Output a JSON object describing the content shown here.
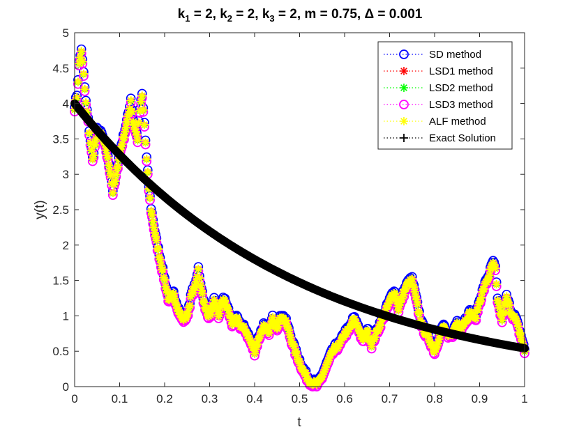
{
  "chart_data": {
    "type": "line",
    "title": {
      "k1_sym": "k",
      "k1_sub": "1",
      "k1_val": " = 2, ",
      "k2_sym": "k",
      "k2_sub": "2",
      "k2_val": " = 2, ",
      "k3_sym": "k",
      "k3_sub": "3",
      "k3_val": " = 2, m = 0.75, ",
      "delta_sym": "Δ",
      "delta_val": " = 0.001"
    },
    "xlabel": "t",
    "ylabel": "y(t)",
    "xlim": [
      0,
      1
    ],
    "ylim": [
      0,
      5
    ],
    "xticks": [
      0,
      0.1,
      0.2,
      0.3,
      0.4,
      0.5,
      0.6,
      0.7,
      0.8,
      0.9,
      1
    ],
    "xtick_labels": [
      "0",
      "0.1",
      "0.2",
      "0.3",
      "0.4",
      "0.5",
      "0.6",
      "0.7",
      "0.8",
      "0.9",
      "1"
    ],
    "yticks": [
      0,
      0.5,
      1,
      1.5,
      2,
      2.5,
      3,
      3.5,
      4,
      4.5,
      5
    ],
    "ytick_labels": [
      "0",
      "0.5",
      "1",
      "1.5",
      "2",
      "2.5",
      "3",
      "3.5",
      "4",
      "4.5",
      "5"
    ],
    "legend_position": "top-right",
    "colors": {
      "sd": "#0000ff",
      "lsd1": "#ff0000",
      "lsd2": "#00ff00",
      "lsd3": "#ff00ff",
      "alf": "#ffff00",
      "exact": "#000000"
    },
    "legend": [
      {
        "key": "sd",
        "label": "SD method",
        "marker": "circle"
      },
      {
        "key": "lsd1",
        "label": "LSD1 method",
        "marker": "asterisk"
      },
      {
        "key": "lsd2",
        "label": "LSD2 method",
        "marker": "asterisk"
      },
      {
        "key": "lsd3",
        "label": "LSD3 method",
        "marker": "circle"
      },
      {
        "key": "alf",
        "label": "ALF method",
        "marker": "asterisk"
      },
      {
        "key": "exact",
        "label": "Exact Solution",
        "marker": "plus"
      }
    ],
    "stochastic_path": {
      "t": [
        0,
        0.005,
        0.01,
        0.015,
        0.02,
        0.025,
        0.03,
        0.035,
        0.04,
        0.045,
        0.05,
        0.06,
        0.07,
        0.08,
        0.085,
        0.09,
        0.1,
        0.11,
        0.12,
        0.125,
        0.13,
        0.14,
        0.145,
        0.15,
        0.155,
        0.16,
        0.165,
        0.17,
        0.18,
        0.19,
        0.2,
        0.21,
        0.22,
        0.23,
        0.24,
        0.25,
        0.26,
        0.27,
        0.275,
        0.28,
        0.29,
        0.3,
        0.31,
        0.32,
        0.33,
        0.34,
        0.35,
        0.36,
        0.37,
        0.38,
        0.39,
        0.4,
        0.41,
        0.42,
        0.43,
        0.44,
        0.45,
        0.46,
        0.47,
        0.48,
        0.49,
        0.5,
        0.51,
        0.52,
        0.53,
        0.54,
        0.55,
        0.56,
        0.57,
        0.58,
        0.59,
        0.6,
        0.61,
        0.62,
        0.63,
        0.64,
        0.65,
        0.66,
        0.67,
        0.68,
        0.69,
        0.7,
        0.71,
        0.72,
        0.73,
        0.74,
        0.75,
        0.76,
        0.77,
        0.78,
        0.79,
        0.8,
        0.81,
        0.82,
        0.83,
        0.84,
        0.85,
        0.86,
        0.87,
        0.88,
        0.89,
        0.9,
        0.91,
        0.92,
        0.93,
        0.935,
        0.94,
        0.95,
        0.96,
        0.97,
        0.98,
        0.99,
        1.0
      ],
      "y": [
        3.95,
        4.1,
        4.55,
        4.75,
        4.4,
        4.0,
        3.75,
        3.45,
        3.2,
        3.4,
        3.6,
        3.55,
        3.35,
        3.0,
        2.75,
        2.9,
        3.3,
        3.55,
        3.85,
        4.05,
        3.75,
        3.5,
        3.9,
        4.1,
        3.7,
        3.2,
        2.8,
        2.5,
        2.1,
        1.8,
        1.5,
        1.2,
        1.3,
        1.1,
        0.95,
        1.0,
        1.3,
        1.45,
        1.65,
        1.45,
        1.1,
        1.0,
        1.2,
        1.0,
        1.25,
        1.1,
        0.9,
        0.95,
        0.85,
        0.8,
        0.65,
        0.5,
        0.7,
        0.85,
        0.75,
        0.95,
        0.85,
        1.0,
        0.9,
        0.7,
        0.5,
        0.35,
        0.2,
        0.1,
        0.05,
        0.03,
        0.15,
        0.3,
        0.45,
        0.55,
        0.6,
        0.75,
        0.8,
        0.95,
        0.85,
        0.65,
        0.8,
        0.6,
        0.75,
        0.9,
        1.05,
        1.2,
        1.35,
        1.1,
        1.3,
        1.45,
        1.5,
        1.2,
        0.9,
        0.75,
        0.65,
        0.5,
        0.7,
        0.85,
        0.7,
        0.75,
        0.9,
        0.85,
        0.95,
        1.05,
        0.95,
        1.2,
        1.4,
        1.55,
        1.75,
        1.65,
        1.2,
        0.95,
        1.25,
        1.05,
        0.95,
        0.75,
        0.5
      ]
    },
    "exact_solution": {
      "formula": "y = 4 * exp(-2 t)",
      "y0": 4,
      "rate": 2
    }
  }
}
